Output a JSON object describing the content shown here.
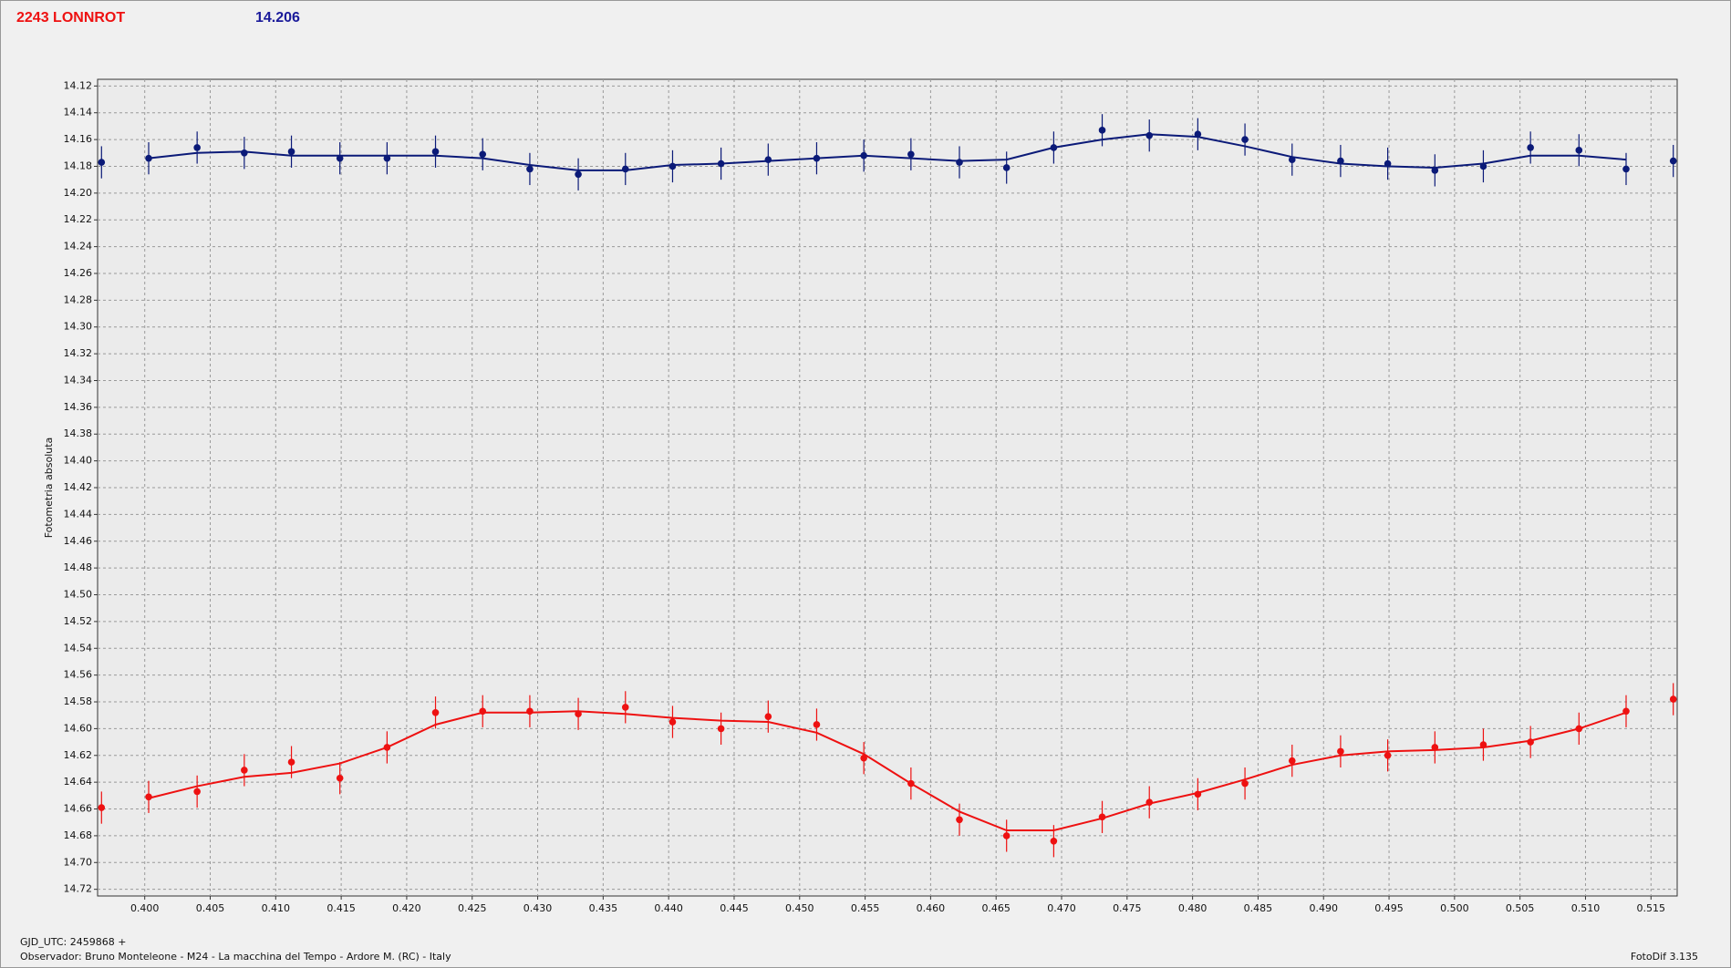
{
  "title": "2243 LONNROT",
  "value": "14.206",
  "footer": {
    "gjd": "GJD_UTC: 2459868 +",
    "observer": "Observador: Bruno Monteleone - M24 - La macchina del Tempo - Ardore M. (RC) - Italy",
    "software": "FotoDif 3.135"
  },
  "chart_data": {
    "type": "scatter",
    "y_label": "Fotometria absoluta",
    "y_inverted": true,
    "grid": true,
    "xlim": [
      0.3964,
      0.517
    ],
    "ylim": [
      14.115,
      14.725
    ],
    "xticks": [
      {
        "value": 0.4,
        "label": "0.400"
      },
      0.405,
      {
        "value": 0.41,
        "label": "0.410"
      },
      0.415,
      {
        "value": 0.42,
        "label": "0.420"
      },
      0.425,
      {
        "value": 0.43,
        "label": "0.430"
      },
      0.435,
      {
        "value": 0.44,
        "label": "0.440"
      },
      0.445,
      {
        "value": 0.45,
        "label": "0.450"
      },
      0.455,
      {
        "value": 0.46,
        "label": "0.460"
      },
      0.465,
      {
        "value": 0.47,
        "label": "0.470"
      },
      0.475,
      {
        "value": 0.48,
        "label": "0.480"
      },
      0.485,
      {
        "value": 0.49,
        "label": "0.490"
      },
      0.495,
      {
        "value": 0.5,
        "label": "0.500"
      },
      0.505,
      {
        "value": 0.51,
        "label": "0.510"
      },
      0.515
    ],
    "yticks": [
      14.12,
      14.14,
      14.16,
      14.18,
      {
        "value": 14.2,
        "label": "14.20"
      },
      14.22,
      14.24,
      14.26,
      14.28,
      {
        "value": 14.3,
        "label": "14.30"
      },
      14.32,
      14.34,
      14.36,
      14.38,
      {
        "value": 14.4,
        "label": "14.40"
      },
      14.42,
      14.44,
      14.46,
      14.48,
      {
        "value": 14.5,
        "label": "14.50"
      },
      14.52,
      14.54,
      14.56,
      14.58,
      {
        "value": 14.6,
        "label": "14.60"
      },
      14.62,
      14.64,
      14.66,
      14.68,
      {
        "value": 14.7,
        "label": "14.70"
      },
      14.72
    ],
    "x": [
      0.3967,
      0.4003,
      0.404,
      0.4076,
      0.4112,
      0.4149,
      0.4185,
      0.4222,
      0.4258,
      0.4294,
      0.4331,
      0.4367,
      0.4403,
      0.444,
      0.4476,
      0.4513,
      0.4549,
      0.4585,
      0.4622,
      0.4658,
      0.4694,
      0.4731,
      0.4767,
      0.4804,
      0.484,
      0.4876,
      0.4913,
      0.4949,
      0.4985,
      0.5022,
      0.5058,
      0.5095,
      0.5131,
      0.5167
    ],
    "series": [
      {
        "color": "#0b1a78",
        "values": [
          14.177,
          14.174,
          14.166,
          14.17,
          14.169,
          14.174,
          14.174,
          14.169,
          14.171,
          14.182,
          14.186,
          14.182,
          14.18,
          14.178,
          14.175,
          14.174,
          14.172,
          14.171,
          14.177,
          14.181,
          14.166,
          14.153,
          14.157,
          14.156,
          14.16,
          14.175,
          14.176,
          14.178,
          14.183,
          14.18,
          14.166,
          14.168,
          14.182,
          14.176
        ],
        "errors": [
          0.012,
          0.012,
          0.012,
          0.012,
          0.012,
          0.012,
          0.012,
          0.012,
          0.012,
          0.012,
          0.012,
          0.012,
          0.012,
          0.012,
          0.012,
          0.012,
          0.012,
          0.012,
          0.012,
          0.012,
          0.012,
          0.012,
          0.012,
          0.012,
          0.012,
          0.012,
          0.012,
          0.012,
          0.012,
          0.012,
          0.012,
          0.012,
          0.012,
          0.012
        ],
        "fit": [
          null,
          14.174,
          14.17,
          14.169,
          14.172,
          14.172,
          14.172,
          14.172,
          14.174,
          14.179,
          14.183,
          14.183,
          14.179,
          14.178,
          14.176,
          14.174,
          14.172,
          14.174,
          14.176,
          14.175,
          14.166,
          14.16,
          14.156,
          14.158,
          14.165,
          14.173,
          14.178,
          14.18,
          14.181,
          14.178,
          14.172,
          14.172,
          14.175,
          null
        ]
      },
      {
        "color": "#ee1111",
        "values": [
          14.659,
          14.651,
          14.647,
          14.631,
          14.625,
          14.637,
          14.614,
          14.588,
          14.587,
          14.587,
          14.589,
          14.584,
          14.595,
          14.6,
          14.591,
          14.597,
          14.622,
          14.641,
          14.668,
          14.68,
          14.684,
          14.666,
          14.655,
          14.649,
          14.641,
          14.624,
          14.617,
          14.62,
          14.614,
          14.612,
          14.61,
          14.6,
          14.587,
          14.578
        ],
        "errors": [
          0.012,
          0.012,
          0.012,
          0.012,
          0.012,
          0.012,
          0.012,
          0.012,
          0.012,
          0.012,
          0.012,
          0.012,
          0.012,
          0.012,
          0.012,
          0.012,
          0.012,
          0.012,
          0.012,
          0.012,
          0.012,
          0.012,
          0.012,
          0.012,
          0.012,
          0.012,
          0.012,
          0.012,
          0.012,
          0.012,
          0.012,
          0.012,
          0.012,
          0.012
        ],
        "fit": [
          null,
          14.652,
          14.643,
          14.636,
          14.633,
          14.626,
          14.614,
          14.597,
          14.588,
          14.588,
          14.587,
          14.589,
          14.592,
          14.594,
          14.595,
          14.603,
          14.619,
          14.641,
          14.662,
          14.676,
          14.676,
          14.667,
          14.656,
          14.648,
          14.638,
          14.627,
          14.62,
          14.617,
          14.616,
          14.614,
          14.609,
          14.6,
          14.588,
          null
        ]
      }
    ]
  }
}
